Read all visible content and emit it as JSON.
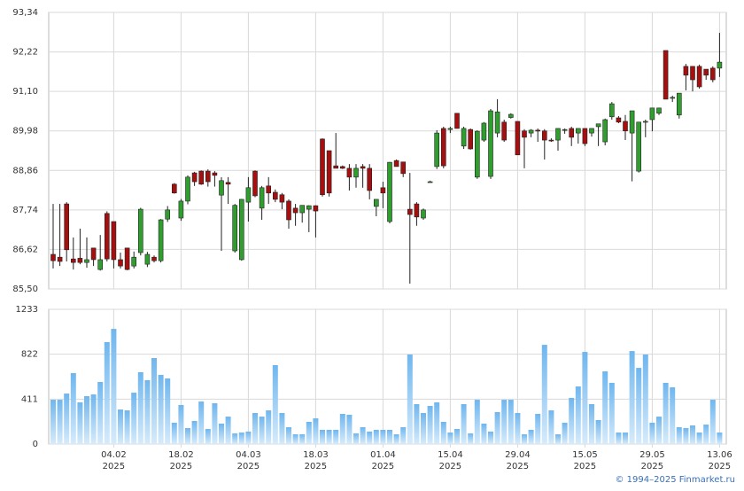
{
  "chart_data": {
    "type": "candlestick",
    "categories": [
      null,
      null,
      null,
      null,
      null,
      null,
      null,
      null,
      null,
      [
        "04.02",
        "2025"
      ],
      null,
      null,
      null,
      null,
      null,
      null,
      null,
      null,
      null,
      [
        "18.02",
        "2025"
      ],
      null,
      null,
      null,
      null,
      null,
      null,
      null,
      null,
      null,
      [
        "04.03",
        "2025"
      ],
      null,
      null,
      null,
      null,
      null,
      null,
      null,
      null,
      null,
      [
        "18.03",
        "2025"
      ],
      null,
      null,
      null,
      null,
      null,
      null,
      null,
      null,
      null,
      [
        "01.04",
        "2025"
      ],
      null,
      null,
      null,
      null,
      null,
      null,
      null,
      null,
      null,
      [
        "15.04",
        "2025"
      ],
      null,
      null,
      null,
      null,
      null,
      null,
      null,
      null,
      null,
      [
        "29.04",
        "2025"
      ],
      null,
      null,
      null,
      null,
      null,
      null,
      null,
      null,
      null,
      [
        "15.05",
        "2025"
      ],
      null,
      null,
      null,
      null,
      null,
      null,
      null,
      null,
      null,
      [
        "29.05",
        "2025"
      ],
      null,
      null,
      null,
      null,
      null,
      null,
      null,
      null,
      null,
      [
        "13.06",
        "2025"
      ]
    ],
    "open": [
      86.48,
      86.4,
      87.91,
      86.35,
      86.37,
      86.25,
      86.66,
      86.05,
      87.64,
      87.41,
      86.33,
      86.66,
      86.15,
      86.53,
      86.2,
      86.4,
      86.3,
      87.48,
      88.47,
      87.51,
      87.99,
      88.79,
      88.84,
      88.84,
      88.79,
      88.16,
      88.52,
      86.58,
      86.33,
      87.96,
      88.84,
      87.79,
      88.42,
      88.24,
      88.17,
      87.99,
      87.79,
      87.66,
      87.76,
      87.86,
      89.75,
      89.42,
      88.99,
      88.97,
      88.92,
      88.67,
      88.97,
      88.92,
      87.84,
      88.37,
      87.41,
      89.14,
      89.1,
      87.76,
      87.91,
      87.51,
      88.54,
      88.97,
      90.05,
      90.02,
      90.48,
      89.55,
      90.02,
      88.67,
      89.72,
      88.69,
      89.92,
      90.23,
      90.36,
      90.25,
      89.98,
      89.92,
      90.0,
      89.98,
      89.72,
      89.72,
      90.0,
      90.05,
      89.92,
      90.05,
      89.92,
      90.1,
      89.67,
      90.38,
      90.35,
      90.25,
      89.92,
      88.84,
      90.25,
      90.3,
      90.48,
      92.26,
      90.93,
      90.43,
      91.81,
      91.81,
      91.81,
      91.73,
      91.76,
      91.76
    ],
    "high": [
      87.91,
      87.91,
      87.96,
      86.96,
      87.21,
      86.96,
      86.66,
      87.03,
      87.7,
      87.41,
      86.53,
      86.66,
      86.56,
      87.8,
      86.55,
      86.45,
      87.48,
      87.85,
      88.5,
      88.05,
      88.72,
      88.82,
      88.86,
      88.89,
      88.84,
      88.67,
      88.67,
      87.91,
      88.05,
      88.67,
      88.86,
      88.42,
      88.67,
      88.32,
      88.22,
      88.04,
      87.91,
      87.87,
      87.87,
      87.87,
      89.77,
      89.42,
      89.92,
      89.0,
      89.04,
      89.04,
      89.04,
      89.04,
      88.0,
      88.54,
      89.1,
      89.17,
      89.1,
      88.79,
      87.96,
      87.78,
      88.57,
      90.0,
      90.1,
      90.1,
      90.48,
      90.1,
      90.05,
      90.0,
      90.23,
      90.6,
      90.88,
      90.3,
      90.48,
      90.25,
      90.03,
      90.03,
      90.05,
      90.03,
      89.77,
      90.05,
      90.05,
      90.1,
      90.05,
      90.05,
      90.05,
      90.18,
      90.33,
      90.8,
      90.4,
      90.43,
      90.55,
      90.23,
      90.3,
      90.63,
      90.63,
      92.26,
      90.98,
      91.05,
      91.88,
      91.81,
      91.86,
      91.73,
      91.81,
      92.76
    ],
    "low": [
      86.08,
      86.15,
      86.28,
      86.05,
      86.2,
      86.1,
      86.15,
      86.02,
      86.28,
      86.08,
      86.08,
      86.03,
      86.08,
      86.45,
      86.12,
      86.25,
      86.25,
      87.4,
      88.2,
      87.43,
      87.9,
      88.42,
      88.45,
      88.4,
      88.4,
      86.58,
      87.91,
      86.53,
      86.3,
      87.41,
      88.1,
      87.46,
      87.91,
      87.96,
      87.76,
      87.21,
      87.29,
      87.38,
      87.11,
      86.96,
      88.12,
      88.12,
      88.92,
      88.9,
      88.29,
      88.37,
      88.37,
      88.04,
      87.56,
      87.79,
      87.36,
      88.97,
      88.67,
      85.65,
      87.29,
      87.46,
      88.52,
      88.9,
      88.92,
      89.92,
      90.05,
      89.47,
      89.45,
      88.62,
      89.67,
      88.62,
      89.8,
      89.67,
      90.33,
      89.3,
      88.92,
      89.8,
      89.67,
      89.17,
      89.67,
      89.42,
      89.9,
      89.55,
      89.62,
      89.55,
      89.82,
      89.55,
      89.57,
      90.3,
      90.2,
      89.72,
      88.55,
      88.8,
      89.8,
      89.97,
      90.43,
      90.88,
      90.8,
      90.33,
      91.13,
      91.1,
      91.18,
      91.43,
      91.36,
      91.51
    ],
    "close": [
      86.3,
      86.28,
      86.61,
      86.25,
      86.25,
      86.33,
      86.33,
      86.33,
      86.35,
      86.33,
      86.15,
      86.05,
      86.4,
      87.76,
      86.48,
      86.3,
      87.46,
      87.74,
      88.22,
      87.99,
      88.67,
      88.54,
      88.47,
      88.54,
      88.72,
      88.57,
      88.47,
      87.87,
      88.04,
      88.37,
      88.14,
      88.37,
      88.22,
      88.04,
      87.96,
      87.46,
      87.66,
      87.87,
      87.86,
      87.71,
      88.17,
      88.22,
      88.92,
      88.92,
      88.67,
      88.92,
      88.92,
      88.29,
      88.04,
      88.22,
      89.09,
      88.97,
      88.77,
      87.61,
      87.54,
      87.74,
      88.54,
      89.92,
      88.99,
      90.05,
      90.05,
      90.05,
      89.47,
      89.97,
      90.2,
      90.55,
      90.52,
      89.72,
      90.45,
      89.3,
      89.8,
      90.0,
      89.98,
      89.72,
      89.7,
      90.05,
      90.02,
      89.8,
      90.05,
      89.62,
      90.05,
      90.18,
      90.3,
      90.75,
      90.23,
      89.98,
      90.55,
      90.23,
      90.25,
      90.63,
      90.63,
      90.88,
      90.93,
      91.05,
      91.56,
      91.43,
      91.23,
      91.56,
      91.43,
      91.93
    ],
    "volume": [
      405,
      405,
      462,
      649,
      381,
      438,
      454,
      568,
      933,
      1054,
      316,
      308,
      470,
      657,
      584,
      787,
      633,
      600,
      195,
      357,
      146,
      211,
      389,
      138,
      373,
      187,
      251,
      97,
      105,
      114,
      284,
      251,
      308,
      722,
      284,
      154,
      89,
      89,
      203,
      235,
      130,
      130,
      130,
      276,
      268,
      97,
      154,
      114,
      130,
      130,
      130,
      89,
      154,
      819,
      365,
      284,
      349,
      381,
      203,
      105,
      138,
      365,
      97,
      405,
      187,
      114,
      292,
      405,
      405,
      284,
      89,
      130,
      276,
      908,
      308,
      89,
      195,
      422,
      527,
      843,
      365,
      219,
      665,
      560,
      105,
      105,
      851,
      697,
      819,
      195,
      251,
      560,
      519,
      154,
      146,
      170,
      105,
      178,
      405,
      105
    ],
    "up_color": "#2f9e2f",
    "down_color": "#a50f0f",
    "volume_color": "#7dbdf0",
    "ylim": [
      85.5,
      93.34
    ],
    "yticks": [
      {
        "value": 85.5,
        "label": "85,50"
      },
      {
        "value": 86.62,
        "label": "86,62"
      },
      {
        "value": 87.74,
        "label": "87,74"
      },
      {
        "value": 88.86,
        "label": "88,86"
      },
      {
        "value": 89.98,
        "label": "89,98"
      },
      {
        "value": 91.1,
        "label": "91,10"
      },
      {
        "value": 92.22,
        "label": "92,22"
      },
      {
        "value": 93.34,
        "label": "93,34"
      }
    ],
    "y2lim": [
      0,
      1233
    ],
    "y2ticks": [
      0,
      411,
      822,
      1233
    ],
    "grid": true
  },
  "copyright": "© 1994–2025 Finmarket.ru"
}
